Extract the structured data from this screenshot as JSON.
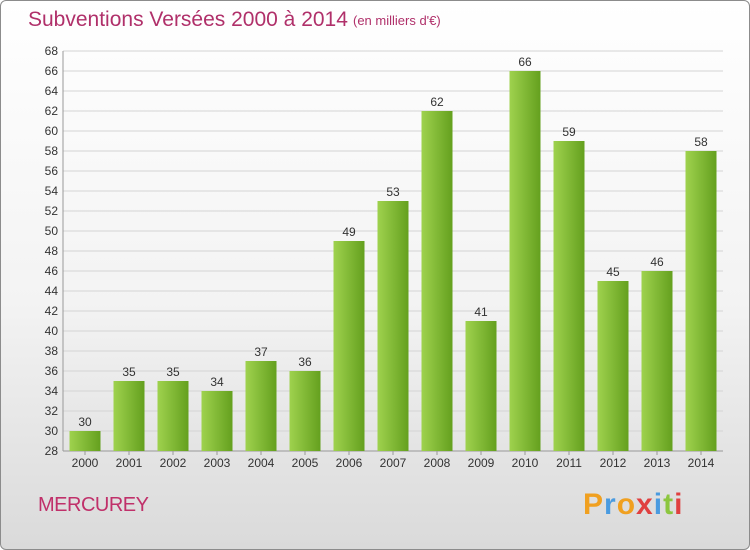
{
  "header": {
    "title": "Subventions Versées 2000 à 2014",
    "unit_note": "(en milliers d'€)"
  },
  "footer": {
    "commune": "MERCUREY",
    "brand": "Proxiti"
  },
  "colors": {
    "title": "#b0306a",
    "bar_light": "#9fd24e",
    "bar_dark": "#64a01e",
    "logo_letters": [
      "#f0a020",
      "#4a9be0",
      "#f0a020",
      "#e04040",
      "#4a9be0",
      "#8cc63f",
      "#e04040"
    ]
  },
  "chart_data": {
    "type": "bar",
    "title": "Subventions Versées 2000 à 2014",
    "subtitle": "(en milliers d'€)",
    "categories": [
      "2000",
      "2001",
      "2002",
      "2003",
      "2004",
      "2005",
      "2006",
      "2007",
      "2008",
      "2009",
      "2010",
      "2011",
      "2012",
      "2013",
      "2014"
    ],
    "values": [
      30,
      35,
      35,
      34,
      37,
      36,
      49,
      53,
      62,
      41,
      66,
      59,
      45,
      46,
      58
    ],
    "ylim": [
      28,
      68
    ],
    "ytick_step": 2,
    "grid": true,
    "xlabel": "",
    "ylabel": ""
  }
}
